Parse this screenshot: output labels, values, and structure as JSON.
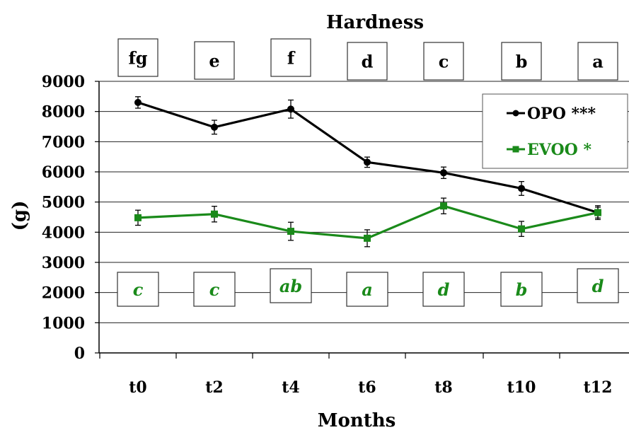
{
  "chart_data": {
    "type": "line",
    "title": "Hardness",
    "xlabel": "Months",
    "ylabel": "(g)",
    "categories": [
      "t0",
      "t2",
      "t4",
      "t6",
      "t8",
      "t10",
      "t12"
    ],
    "ylim": [
      0,
      9000
    ],
    "yticks": [
      0,
      1000,
      2000,
      3000,
      4000,
      5000,
      6000,
      7000,
      8000,
      9000
    ],
    "grid": true,
    "legend_position": "top-right",
    "series": [
      {
        "name": "OPO ***",
        "color": "#000000",
        "marker": "circle",
        "values": [
          8300,
          7480,
          8080,
          6320,
          5970,
          5450,
          4650
        ],
        "errors": [
          190,
          230,
          300,
          170,
          190,
          230,
          180
        ],
        "letters": [
          "fg",
          "e",
          "f",
          "d",
          "c",
          "b",
          "a"
        ]
      },
      {
        "name": "EVOO *",
        "color": "#1a8a1a",
        "marker": "square",
        "values": [
          4480,
          4600,
          4030,
          3800,
          4870,
          4110,
          4650
        ],
        "errors": [
          250,
          260,
          300,
          280,
          260,
          250,
          230
        ],
        "letters": [
          "c",
          "c",
          "ab",
          "a",
          "d",
          "b",
          "d"
        ]
      }
    ]
  }
}
